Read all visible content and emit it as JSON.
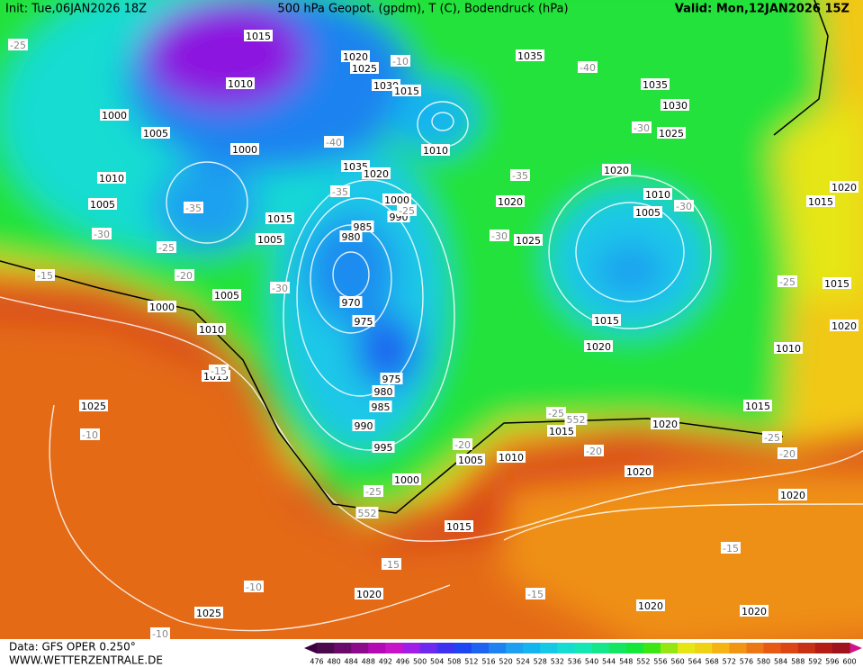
{
  "header": {
    "init": "Init: Tue,06JAN2026 18Z",
    "title": "500 hPa Geopot. (gpdm), T (C), Bodendruck (hPa)",
    "valid": "Valid: Mon,12JAN2026 15Z"
  },
  "footer": {
    "data": "Data: GFS OPER 0.250°",
    "site": "WWW.WETTERZENTRALE.DE"
  },
  "isobar_labels": [
    "1015",
    "1010",
    "1000",
    "1005",
    "1000",
    "1010",
    "1005",
    "1005",
    "1015",
    "1020",
    "1025",
    "1030",
    "1015",
    "1010",
    "1035",
    "1020",
    "1000",
    "990",
    "985",
    "980",
    "970",
    "975",
    "975",
    "980",
    "985",
    "990",
    "995",
    "1000",
    "1005",
    "1000",
    "1010",
    "1015",
    "1025",
    "1035",
    "1035",
    "1030",
    "1025",
    "1020",
    "1010",
    "1005",
    "1020",
    "1025",
    "1015",
    "1020",
    "1010",
    "1015",
    "1020",
    "1015",
    "1010",
    "1005",
    "1020",
    "1020",
    "1015",
    "1020",
    "1020",
    "1020",
    "1025",
    "1015",
    "1020",
    "1015",
    "1020"
  ],
  "temperature_labels": [
    "-25",
    "-10",
    "-40",
    "-30",
    "-40",
    "-35",
    "-35",
    "-35",
    "-25",
    "-30",
    "-30",
    "-25",
    "-30",
    "-15",
    "-20",
    "-30",
    "-25",
    "-25",
    "552",
    "-25",
    "-20",
    "-20",
    "-20",
    "-25",
    "552",
    "-10",
    "-15",
    "-15",
    "-15",
    "-10",
    "-10",
    "-15"
  ],
  "colorbar": {
    "labels": [
      476,
      480,
      484,
      488,
      492,
      496,
      500,
      504,
      508,
      512,
      516,
      520,
      524,
      528,
      532,
      536,
      540,
      544,
      548,
      552,
      556,
      560,
      564,
      568,
      572,
      576,
      580,
      584,
      588,
      592,
      596,
      600
    ],
    "colors": [
      "#4b0a4b",
      "#6a0a6a",
      "#8c0a8c",
      "#b40ab4",
      "#c814c8",
      "#a01ee6",
      "#6e28f0",
      "#3c32f0",
      "#1e46f0",
      "#1e64f0",
      "#1e82f0",
      "#1ea0f0",
      "#14b4f0",
      "#14c8e6",
      "#14dcd2",
      "#14e6b4",
      "#14e68c",
      "#14e664",
      "#14e63c",
      "#3ce614",
      "#96e614",
      "#e6e614",
      "#f0d214",
      "#f5b414",
      "#f09614",
      "#eb7814",
      "#e65a14",
      "#dc4614",
      "#c83214",
      "#b41e14",
      "#a0141e"
    ],
    "low_color": "#3a0040",
    "high_color": "#d0148c"
  }
}
